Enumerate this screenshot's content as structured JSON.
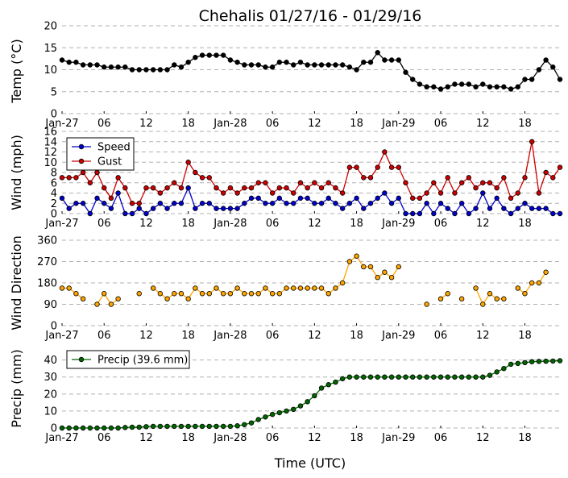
{
  "title": "Chehalis 01/27/16 - 01/29/16",
  "xlabel": "Time (UTC)",
  "x_tick_labels": [
    "Jan-27",
    "06",
    "12",
    "18",
    "Jan-28",
    "06",
    "12",
    "18",
    "Jan-29",
    "06",
    "12",
    "18"
  ],
  "colors": {
    "temp": "#000000",
    "speed": "#0000cc",
    "gust": "#cc0000",
    "direction": "#ffa500",
    "precip": "#006400"
  },
  "chart_data": [
    {
      "type": "line",
      "ylabel": "Temp (°C)",
      "ylim": [
        0,
        20
      ],
      "yticks": [
        "0",
        "5",
        "10",
        "15",
        "20"
      ],
      "x_hours": [
        0,
        1,
        2,
        3,
        4,
        5,
        6,
        7,
        8,
        9,
        10,
        11,
        12,
        13,
        14,
        15,
        16,
        17,
        18,
        19,
        20,
        21,
        22,
        23,
        24,
        25,
        26,
        27,
        28,
        29,
        30,
        31,
        32,
        33,
        34,
        35,
        36,
        37,
        38,
        39,
        40,
        41,
        42,
        43,
        44,
        45,
        46,
        47,
        48,
        49,
        50,
        51,
        52,
        53,
        54,
        55,
        56,
        57,
        58,
        59,
        60,
        61,
        62,
        63,
        64,
        65,
        66,
        67,
        68,
        69,
        70,
        71
      ],
      "series": [
        {
          "key": "temp",
          "values": [
            12.2,
            11.7,
            11.7,
            11.1,
            11.1,
            11.1,
            10.6,
            10.6,
            10.6,
            10.6,
            10.0,
            10.0,
            10.0,
            10.0,
            10.0,
            10.0,
            11.1,
            10.6,
            11.7,
            12.8,
            13.3,
            13.3,
            13.3,
            13.3,
            12.2,
            11.7,
            11.1,
            11.1,
            11.1,
            10.6,
            10.6,
            11.7,
            11.7,
            11.1,
            11.7,
            11.1,
            11.1,
            11.1,
            11.1,
            11.1,
            11.1,
            10.6,
            10.0,
            11.7,
            11.7,
            13.9,
            12.2,
            12.2,
            12.2,
            9.4,
            7.8,
            6.7,
            6.1,
            6.1,
            5.6,
            6.1,
            6.7,
            6.7,
            6.7,
            6.1,
            6.7,
            6.1,
            6.1,
            6.1,
            5.6,
            6.1,
            7.8,
            7.8,
            10.0,
            12.2,
            10.6,
            7.8
          ]
        }
      ]
    },
    {
      "type": "line",
      "ylabel": "Wind (mph)",
      "ylim": [
        0,
        16
      ],
      "yticks": [
        "0",
        "2",
        "4",
        "6",
        "8",
        "10",
        "12",
        "14",
        "16"
      ],
      "legend": "top-left",
      "x_hours": [
        0,
        1,
        2,
        3,
        4,
        5,
        6,
        7,
        8,
        9,
        10,
        11,
        12,
        13,
        14,
        15,
        16,
        17,
        18,
        19,
        20,
        21,
        22,
        23,
        24,
        25,
        26,
        27,
        28,
        29,
        30,
        31,
        32,
        33,
        34,
        35,
        36,
        37,
        38,
        39,
        40,
        41,
        42,
        43,
        44,
        45,
        46,
        47,
        48,
        49,
        50,
        51,
        52,
        53,
        54,
        55,
        56,
        57,
        58,
        59,
        60,
        61,
        62,
        63,
        64,
        65,
        66,
        67,
        68,
        69,
        70,
        71
      ],
      "series": [
        {
          "key": "speed",
          "name": "Speed",
          "values": [
            3,
            1,
            2,
            2,
            0,
            3,
            2,
            1,
            4,
            0,
            0,
            1,
            0,
            1,
            2,
            1,
            2,
            2,
            5,
            1,
            2,
            2,
            1,
            1,
            1,
            1,
            2,
            3,
            3,
            2,
            2,
            3,
            2,
            2,
            3,
            3,
            2,
            2,
            3,
            2,
            1,
            2,
            3,
            1,
            2,
            3,
            4,
            2,
            3,
            0,
            0,
            0,
            2,
            0,
            2,
            1,
            0,
            2,
            0,
            1,
            4,
            1,
            3,
            1,
            0,
            1,
            2,
            1,
            1,
            1,
            0,
            0
          ]
        },
        {
          "key": "gust",
          "name": "Gust",
          "values": [
            7,
            7,
            7,
            8,
            6,
            8,
            5,
            3,
            7,
            5,
            2,
            2,
            5,
            5,
            4,
            5,
            6,
            5,
            10,
            8,
            7,
            7,
            5,
            4,
            5,
            4,
            5,
            5,
            6,
            6,
            4,
            5,
            5,
            4,
            6,
            5,
            6,
            5,
            6,
            5,
            4,
            9,
            9,
            7,
            7,
            9,
            12,
            9,
            9,
            6,
            3,
            3,
            4,
            6,
            4,
            7,
            4,
            6,
            7,
            5,
            6,
            6,
            5,
            7,
            3,
            4,
            7,
            14,
            4,
            8,
            7,
            9
          ]
        }
      ]
    },
    {
      "type": "scatter",
      "ylabel": "Wind Direction",
      "ylim": [
        0,
        360
      ],
      "yticks": [
        "0",
        "90",
        "180",
        "270",
        "360"
      ],
      "x_hours": [
        0,
        1,
        2,
        3,
        4,
        5,
        6,
        7,
        8,
        9,
        10,
        11,
        12,
        13,
        14,
        15,
        16,
        17,
        18,
        19,
        20,
        21,
        22,
        23,
        24,
        25,
        26,
        27,
        28,
        29,
        30,
        31,
        32,
        33,
        34,
        35,
        36,
        37,
        38,
        39,
        40,
        41,
        42,
        43,
        44,
        45,
        46,
        47,
        48,
        49,
        50,
        51,
        52,
        53,
        54,
        55,
        56,
        57,
        58,
        59,
        60,
        61,
        62,
        63,
        64,
        65,
        66,
        67,
        68,
        69,
        70,
        71
      ],
      "series": [
        {
          "key": "direction",
          "values": [
            158,
            158,
            135,
            113,
            null,
            90,
            135,
            90,
            113,
            null,
            null,
            135,
            null,
            158,
            135,
            113,
            135,
            135,
            113,
            158,
            135,
            135,
            158,
            135,
            135,
            158,
            135,
            135,
            135,
            158,
            135,
            135,
            158,
            158,
            158,
            158,
            158,
            158,
            135,
            158,
            180,
            270,
            293,
            248,
            248,
            203,
            225,
            203,
            248,
            null,
            null,
            null,
            90,
            null,
            113,
            135,
            null,
            113,
            null,
            158,
            90,
            135,
            113,
            113,
            null,
            158,
            135,
            180,
            180,
            225,
            null,
            null
          ]
        }
      ]
    },
    {
      "type": "line",
      "ylabel": "Precip (mm)",
      "ylim": [
        0,
        46
      ],
      "yticks": [
        "0",
        "10",
        "20",
        "30",
        "40"
      ],
      "legend": "top-left",
      "x_hours": [
        0,
        1,
        2,
        3,
        4,
        5,
        6,
        7,
        8,
        9,
        10,
        11,
        12,
        13,
        14,
        15,
        16,
        17,
        18,
        19,
        20,
        21,
        22,
        23,
        24,
        25,
        26,
        27,
        28,
        29,
        30,
        31,
        32,
        33,
        34,
        35,
        36,
        37,
        38,
        39,
        40,
        41,
        42,
        43,
        44,
        45,
        46,
        47,
        48,
        49,
        50,
        51,
        52,
        53,
        54,
        55,
        56,
        57,
        58,
        59,
        60,
        61,
        62,
        63,
        64,
        65,
        66,
        67,
        68,
        69,
        70,
        71
      ],
      "series": [
        {
          "key": "precip",
          "name": "Precip (39.6 mm)",
          "values": [
            0,
            0,
            0,
            0,
            0,
            0,
            0,
            0,
            0,
            0.3,
            0.5,
            0.5,
            0.8,
            1.0,
            1.0,
            1.0,
            1.0,
            1.0,
            1.0,
            1.0,
            1.0,
            1.0,
            1.0,
            1.0,
            1.0,
            1.3,
            2.0,
            3.0,
            5.0,
            6.5,
            8.0,
            9.0,
            10.0,
            11.0,
            13.0,
            15.5,
            19.0,
            23.5,
            25.5,
            27.0,
            29.0,
            30.0,
            30.0,
            30.0,
            30.0,
            30.0,
            30.0,
            30.0,
            30.0,
            30.0,
            30.0,
            30.0,
            30.0,
            30.0,
            30.0,
            30.0,
            30.0,
            30.0,
            30.0,
            30.0,
            30.0,
            31.0,
            33.0,
            35.0,
            37.5,
            38.0,
            38.5,
            39.0,
            39.2,
            39.3,
            39.4,
            39.6
          ]
        }
      ]
    }
  ]
}
